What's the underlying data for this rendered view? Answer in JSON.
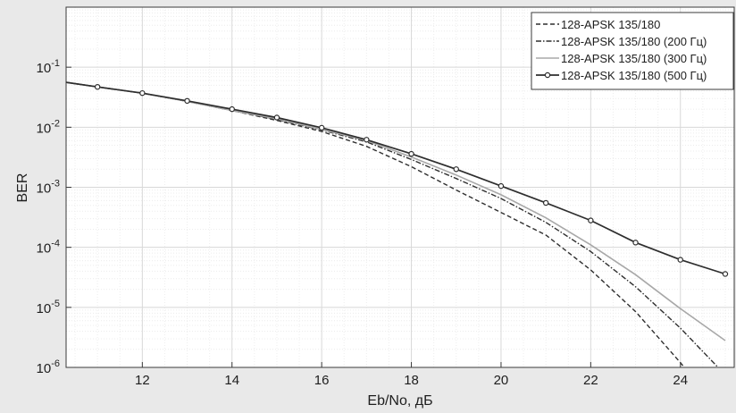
{
  "chart_data": {
    "type": "line",
    "xlabel": "Eb/No, дБ",
    "ylabel": "BER",
    "xlim": [
      10.3,
      25.2
    ],
    "ylim": [
      1e-06,
      1
    ],
    "yscale": "log",
    "grid": true,
    "minor_grid": true,
    "legend_position": "top-right",
    "x_ticks": [
      12,
      14,
      16,
      18,
      20,
      22,
      24
    ],
    "x_tick_labels": [
      "12",
      "14",
      "16",
      "18",
      "20",
      "22",
      "24"
    ],
    "y_tick_exponents": [
      -6,
      -5,
      -4,
      -3,
      -2,
      -1
    ],
    "colors": {
      "plot_background": "#ffffff",
      "figure_background": "#e9e9e9",
      "grid": "#d8d8d8",
      "line_dark": "#2e2e2e",
      "line_light": "#a8a8a8"
    },
    "series": [
      {
        "name": "128-APSK 135/180",
        "style": "dashed",
        "x": [
          10.3,
          11,
          12,
          13,
          14,
          15,
          16,
          17,
          18,
          19,
          20,
          21,
          22,
          23,
          24,
          24.6
        ],
        "y": [
          0.056,
          0.047,
          0.037,
          0.027,
          0.019,
          0.013,
          0.0085,
          0.0048,
          0.0022,
          0.0009,
          0.00038,
          0.00016,
          4.2e-05,
          8.5e-06,
          1.2e-06,
          3.3e-07
        ]
      },
      {
        "name": "128-APSK 135/180 (200 Гц)",
        "style": "dashdot",
        "x": [
          10.3,
          11,
          12,
          13,
          14,
          15,
          16,
          17,
          18,
          19,
          20,
          21,
          22,
          23,
          24,
          25
        ],
        "y": [
          0.056,
          0.047,
          0.037,
          0.027,
          0.019,
          0.0135,
          0.009,
          0.0057,
          0.0029,
          0.0014,
          0.00065,
          0.00026,
          8.5e-05,
          2.2e-05,
          4.5e-06,
          7.5e-07
        ]
      },
      {
        "name": "128-APSK 135/180 (300 Гц)",
        "style": "solid-light",
        "x": [
          10.3,
          11,
          12,
          13,
          14,
          15,
          16,
          17,
          18,
          19,
          20,
          21,
          22,
          23,
          24,
          25
        ],
        "y": [
          0.056,
          0.047,
          0.037,
          0.027,
          0.019,
          0.0138,
          0.0092,
          0.006,
          0.0032,
          0.0016,
          0.00075,
          0.00031,
          0.00011,
          3.5e-05,
          9.5e-06,
          2.8e-06
        ]
      },
      {
        "name": "128-APSK 135/180 (500 Гц)",
        "style": "solid-markers",
        "x": [
          10.3,
          11,
          12,
          13,
          14,
          15,
          16,
          17,
          18,
          19,
          20,
          21,
          22,
          23,
          24,
          25
        ],
        "y": [
          0.056,
          0.047,
          0.037,
          0.0275,
          0.02,
          0.0145,
          0.0098,
          0.0062,
          0.0036,
          0.002,
          0.00105,
          0.00055,
          0.00028,
          0.00012,
          6.2e-05,
          3.6e-05
        ],
        "marker_x": [
          11,
          12,
          13,
          14,
          15,
          16,
          17,
          18,
          19,
          20,
          21,
          22,
          23,
          24,
          25
        ]
      }
    ]
  }
}
